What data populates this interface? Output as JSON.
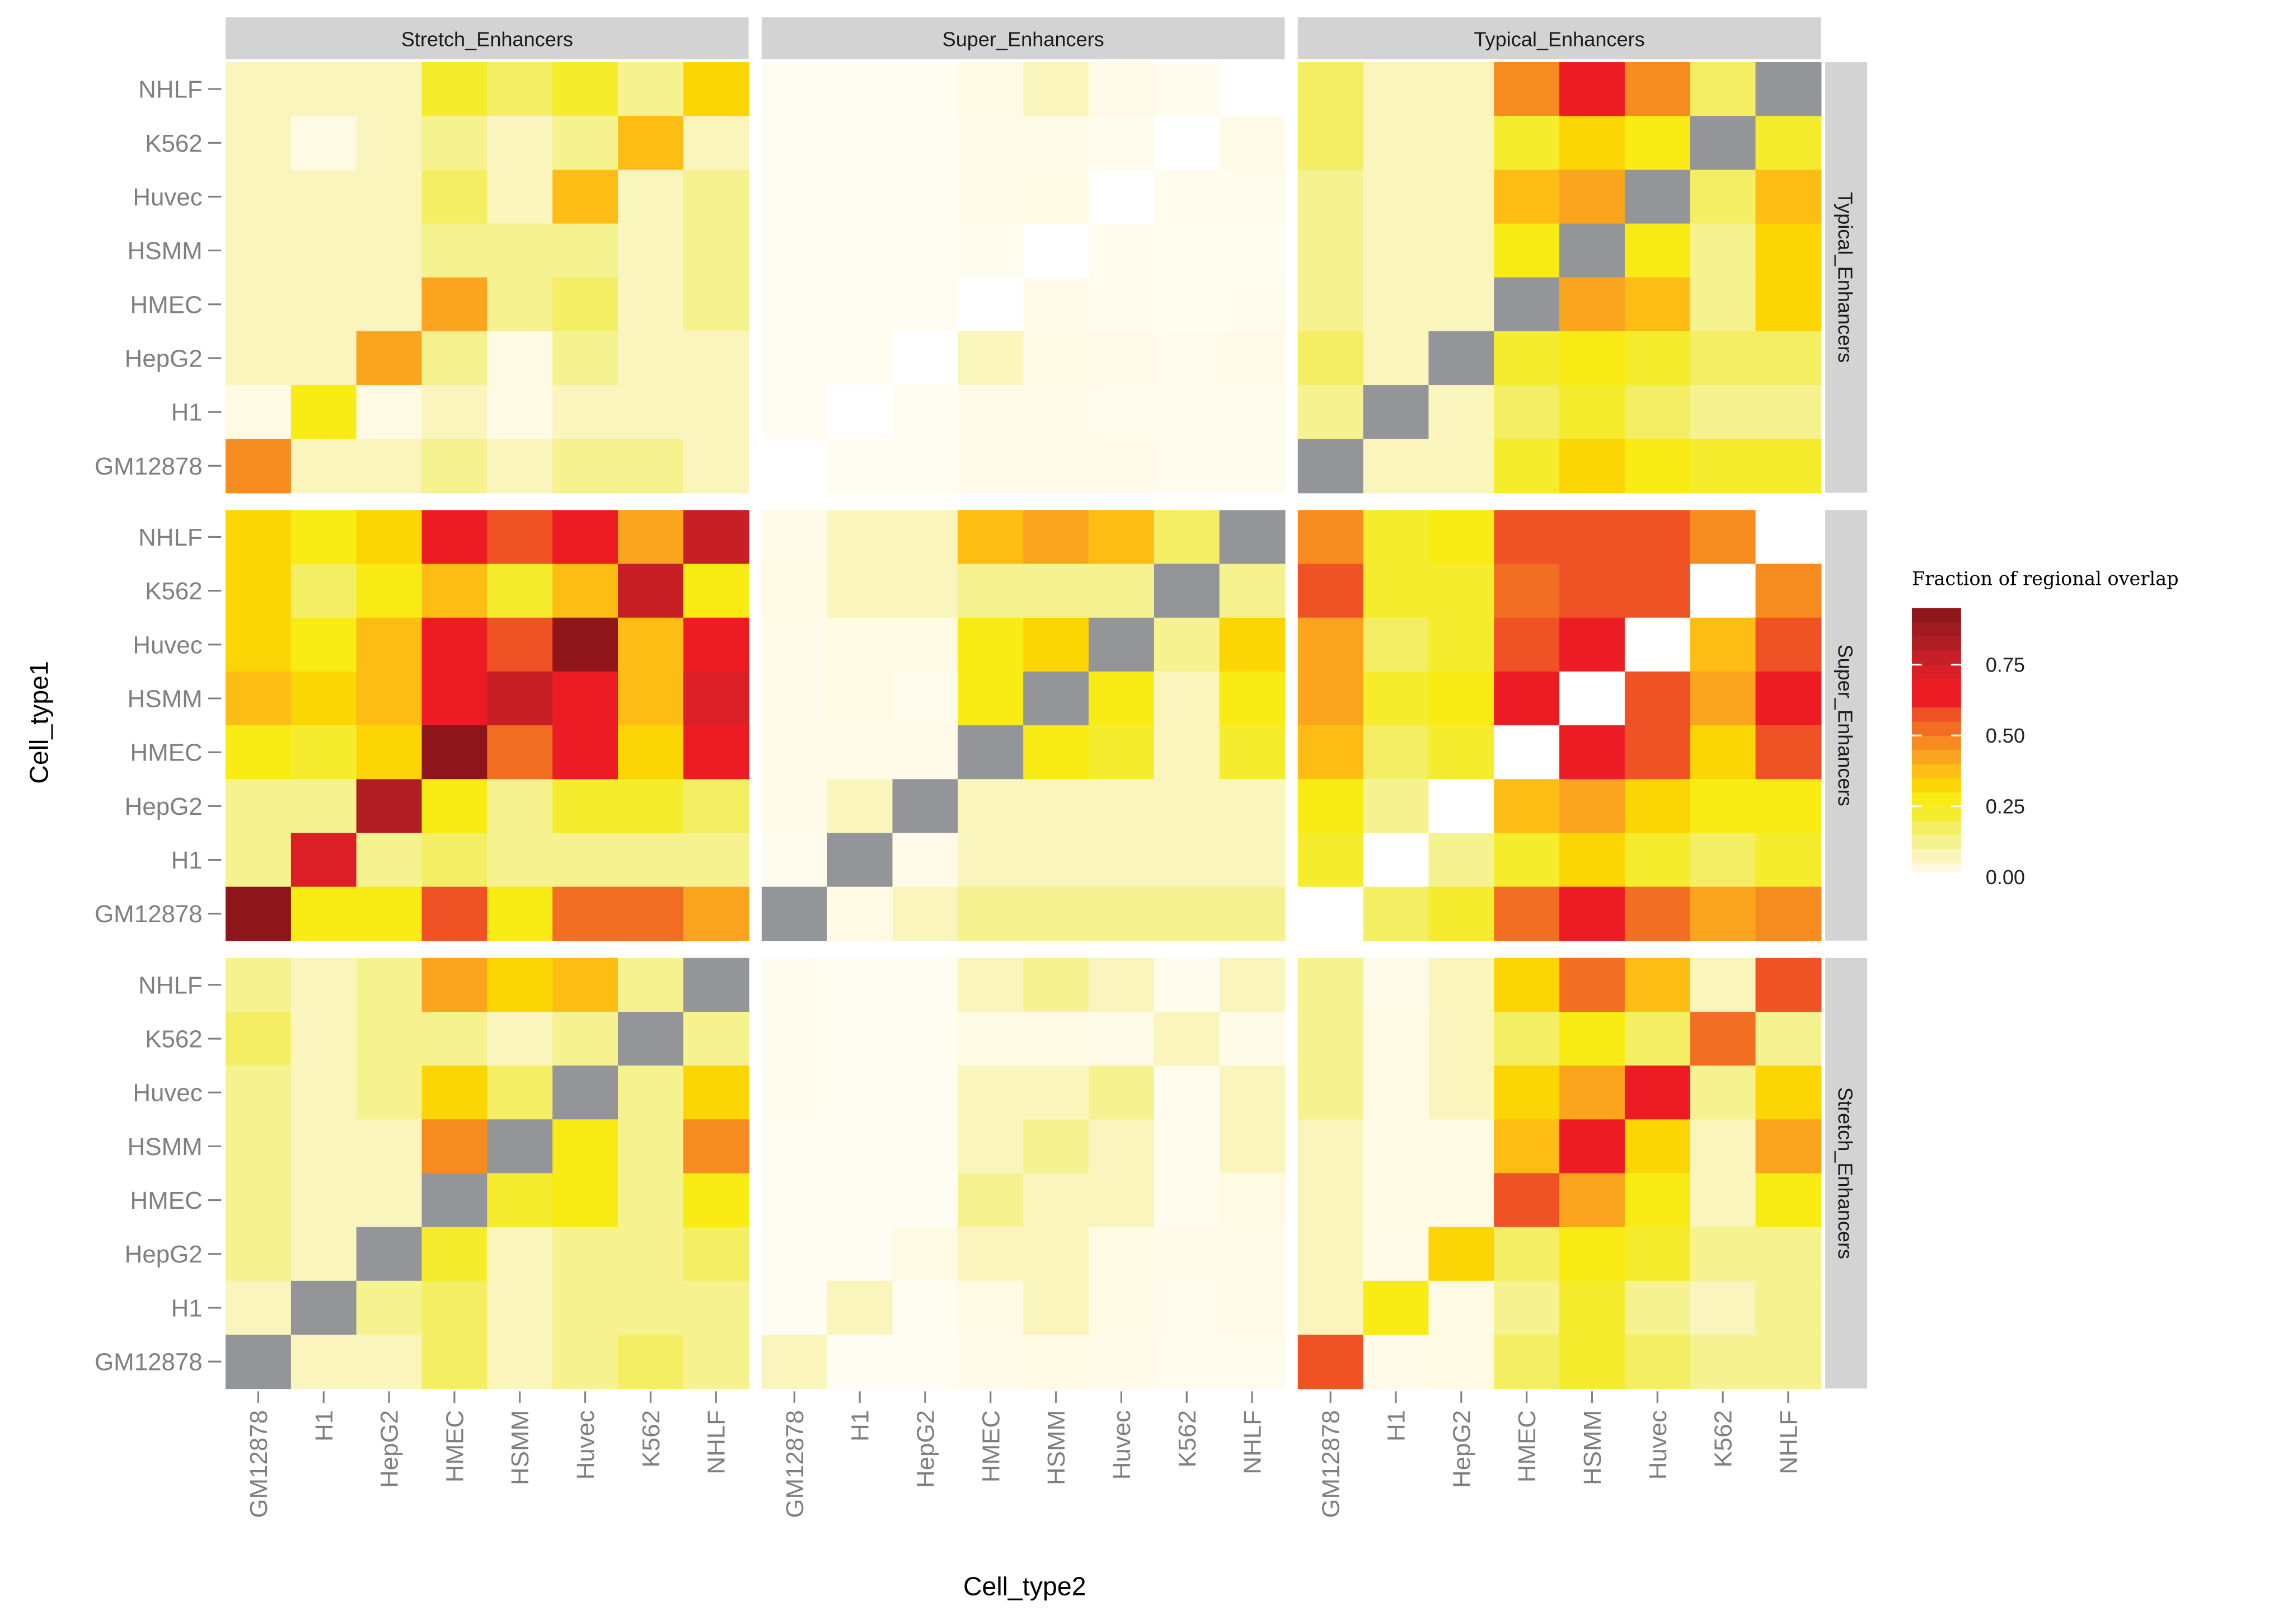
{
  "chart_data": {
    "type": "heatmap",
    "title": "",
    "xlabel": "Cell_type2",
    "ylabel": "Cell_type1",
    "x_labels": [
      "GM12878",
      "H1",
      "HepG2",
      "HMEC",
      "HSMM",
      "Huvec",
      "K562",
      "NHLF"
    ],
    "y_labels_top_to_bottom": [
      "NHLF",
      "K562",
      "Huvec",
      "HSMM",
      "HMEC",
      "HepG2",
      "H1",
      "GM12878"
    ],
    "facet_cols": [
      "Stretch_Enhancers",
      "Super_Enhancers",
      "Typical_Enhancers"
    ],
    "facet_rows": [
      "Typical_Enhancers",
      "Super_Enhancers",
      "Stretch_Enhancers"
    ],
    "legend": {
      "title": "Fraction of regional overlap",
      "placement": "right",
      "ticks": [
        {
          "value": 0.0,
          "label": "0.00"
        },
        {
          "value": 0.25,
          "label": "0.25"
        },
        {
          "value": 0.5,
          "label": "0.50"
        },
        {
          "value": 0.75,
          "label": "0.75"
        }
      ],
      "range": [
        0,
        0.95
      ],
      "step": 0.05,
      "palette": [
        "#FFF9DF",
        "#FAF5BD",
        "#F7F290",
        "#F4EE64",
        "#F4EC2C",
        "#F9EB14",
        "#FCD505",
        "#FDBD14",
        "#FBA51F",
        "#F68B1F",
        "#F26E22",
        "#EF5224",
        "#ED1C24",
        "#ED1C24",
        "#DA1F26",
        "#C62026",
        "#B01E23",
        "#A11C21",
        "#8E1519"
      ],
      "na_color": "#949598"
    },
    "panels": [
      {
        "row": "Typical_Enhancers",
        "col": "Stretch_Enhancers",
        "values": [
          [
            0.08,
            0.05,
            0.08,
            0.23,
            0.16,
            0.23,
            0.1,
            0.33
          ],
          [
            0.08,
            0.04,
            0.08,
            0.1,
            0.05,
            0.1,
            0.38,
            0.09
          ],
          [
            0.08,
            0.05,
            0.07,
            0.17,
            0.09,
            0.38,
            0.09,
            0.15
          ],
          [
            0.07,
            0.05,
            0.06,
            0.14,
            0.15,
            0.12,
            0.08,
            0.13
          ],
          [
            0.08,
            0.05,
            0.07,
            0.4,
            0.1,
            0.16,
            0.08,
            0.14
          ],
          [
            0.07,
            0.05,
            0.43,
            0.1,
            0.04,
            0.1,
            0.08,
            0.08
          ],
          [
            0.04,
            0.28,
            0.04,
            0.07,
            0.04,
            0.07,
            0.07,
            0.05
          ],
          [
            0.48,
            0.05,
            0.07,
            0.12,
            0.05,
            0.12,
            0.13,
            0.09
          ]
        ]
      },
      {
        "row": "Typical_Enhancers",
        "col": "Super_Enhancers",
        "values": [
          [
            0.01,
            0.01,
            0.01,
            0.04,
            0.05,
            0.03,
            0.02,
            0
          ],
          [
            0.01,
            0.01,
            0.01,
            0.03,
            0.03,
            0.02,
            0,
            0.03
          ],
          [
            0.01,
            0.01,
            0.01,
            0.03,
            0.04,
            0,
            0.02,
            0.02
          ],
          [
            0.01,
            0.01,
            0.01,
            0.02,
            0,
            0.02,
            0.015,
            0.015
          ],
          [
            0.01,
            0.01,
            0.01,
            0,
            0.03,
            0.02,
            0.015,
            0.02
          ],
          [
            0.01,
            0.01,
            0,
            0.05,
            0.04,
            0.03,
            0.02,
            0.03
          ],
          [
            0.01,
            0,
            0.01,
            0.03,
            0.03,
            0.02,
            0.02,
            0.02
          ],
          [
            0,
            0.01,
            0.01,
            0.03,
            0.03,
            0.03,
            0.02,
            0.02
          ]
        ]
      },
      {
        "row": "Typical_Enhancers",
        "col": "Typical_Enhancers",
        "values": [
          [
            0.16,
            0.08,
            0.08,
            0.48,
            0.61,
            0.48,
            0.18,
            null
          ],
          [
            0.18,
            0.08,
            0.09,
            0.23,
            0.32,
            0.28,
            null,
            0.24
          ],
          [
            0.15,
            0.08,
            0.09,
            0.38,
            0.43,
            null,
            0.16,
            0.38
          ],
          [
            0.1,
            0.07,
            0.07,
            0.29,
            null,
            0.28,
            0.1,
            0.31
          ],
          [
            0.14,
            0.07,
            0.09,
            null,
            0.43,
            0.37,
            0.15,
            0.35
          ],
          [
            0.17,
            0.07,
            null,
            0.24,
            0.26,
            0.23,
            0.19,
            0.19
          ],
          [
            0.13,
            null,
            0.05,
            0.18,
            0.22,
            0.17,
            0.13,
            0.14
          ],
          [
            null,
            0.07,
            0.09,
            0.24,
            0.31,
            0.28,
            0.22,
            0.23
          ]
        ]
      },
      {
        "row": "Super_Enhancers",
        "col": "Stretch_Enhancers",
        "values": [
          [
            0.33,
            0.28,
            0.33,
            0.68,
            0.56,
            0.68,
            0.4,
            0.76
          ],
          [
            0.31,
            0.17,
            0.26,
            0.37,
            0.23,
            0.38,
            0.75,
            0.28
          ],
          [
            0.33,
            0.26,
            0.37,
            0.68,
            0.56,
            0.95,
            0.38,
            0.7
          ],
          [
            0.37,
            0.32,
            0.36,
            0.7,
            0.77,
            0.68,
            0.38,
            0.71
          ],
          [
            0.3,
            0.22,
            0.33,
            0.9,
            0.52,
            0.63,
            0.33,
            0.63
          ],
          [
            0.15,
            0.15,
            0.8,
            0.28,
            0.12,
            0.23,
            0.24,
            0.19
          ],
          [
            0.1,
            0.73,
            0.1,
            0.16,
            0.1,
            0.14,
            0.15,
            0.11
          ],
          [
            0.95,
            0.27,
            0.3,
            0.55,
            0.3,
            0.5,
            0.5,
            0.44
          ]
        ]
      },
      {
        "row": "Super_Enhancers",
        "col": "Super_Enhancers",
        "values": [
          [
            0.03,
            0.05,
            0.05,
            0.37,
            0.43,
            0.39,
            0.16,
            null
          ],
          [
            0.04,
            0.05,
            0.06,
            0.12,
            0.13,
            0.12,
            null,
            0.15
          ],
          [
            0.03,
            0.04,
            0.04,
            0.3,
            0.32,
            null,
            0.1,
            0.33
          ],
          [
            0.03,
            0.04,
            0.02,
            0.26,
            null,
            0.28,
            0.08,
            0.3
          ],
          [
            0.03,
            0.03,
            0.03,
            null,
            0.26,
            0.24,
            0.09,
            0.24
          ],
          [
            0.03,
            0.05,
            null,
            0.08,
            0.07,
            0.07,
            0.09,
            0.08
          ],
          [
            0.02,
            null,
            0.03,
            0.06,
            0.06,
            0.06,
            0.07,
            0.07
          ],
          [
            null,
            0.04,
            0.06,
            0.1,
            0.13,
            0.1,
            0.12,
            0.1
          ]
        ]
      },
      {
        "row": "Super_Enhancers",
        "col": "Typical_Enhancers",
        "values": [
          [
            0.47,
            0.24,
            0.27,
            0.56,
            0.56,
            0.56,
            0.47,
            0
          ],
          [
            0.56,
            0.24,
            0.23,
            0.52,
            0.58,
            0.55,
            0,
            0.45
          ],
          [
            0.4,
            0.18,
            0.2,
            0.6,
            0.64,
            0,
            0.39,
            0.57
          ],
          [
            0.41,
            0.24,
            0.25,
            0.65,
            0,
            0.6,
            0.43,
            0.65
          ],
          [
            0.38,
            0.16,
            0.24,
            0,
            0.65,
            0.56,
            0.35,
            0.6
          ],
          [
            0.26,
            0.1,
            0,
            0.39,
            0.43,
            0.32,
            0.26,
            0.29
          ],
          [
            0.22,
            0,
            0.1,
            0.24,
            0.33,
            0.23,
            0.18,
            0.22
          ],
          [
            0,
            0.19,
            0.22,
            0.53,
            0.61,
            0.5,
            0.4,
            0.47
          ]
        ]
      },
      {
        "row": "Stretch_Enhancers",
        "col": "Stretch_Enhancers",
        "values": [
          [
            0.12,
            0.09,
            0.12,
            0.42,
            0.33,
            0.37,
            0.13,
            null
          ],
          [
            0.16,
            0.08,
            0.1,
            0.15,
            0.08,
            0.14,
            null,
            0.13
          ],
          [
            0.11,
            0.08,
            0.1,
            0.33,
            0.16,
            null,
            0.12,
            0.32
          ],
          [
            0.1,
            0.08,
            0.09,
            0.45,
            null,
            0.3,
            0.11,
            0.48
          ],
          [
            0.1,
            0.07,
            0.09,
            null,
            0.22,
            0.27,
            0.12,
            0.3
          ],
          [
            0.1,
            0.08,
            null,
            0.2,
            0.08,
            0.15,
            0.14,
            0.16
          ],
          [
            0.09,
            null,
            0.1,
            0.16,
            0.08,
            0.14,
            0.1,
            0.14
          ],
          [
            null,
            0.07,
            0.08,
            0.16,
            0.07,
            0.15,
            0.17,
            0.14
          ]
        ]
      },
      {
        "row": "Stretch_Enhancers",
        "col": "Super_Enhancers",
        "values": [
          [
            0.02,
            0.01,
            0.01,
            0.08,
            0.12,
            0.07,
            0.02,
            0.08
          ],
          [
            0.02,
            0.01,
            0.01,
            0.04,
            0.04,
            0.03,
            0.06,
            0.03
          ],
          [
            0.02,
            0.01,
            0.01,
            0.07,
            0.08,
            0.13,
            0.02,
            0.06
          ],
          [
            0.01,
            0.01,
            0.01,
            0.07,
            0.15,
            0.06,
            0.02,
            0.06
          ],
          [
            0.01,
            0.01,
            0.01,
            0.14,
            0.07,
            0.05,
            0.02,
            0.04
          ],
          [
            0.01,
            0.01,
            0.04,
            0.05,
            0.05,
            0.04,
            0.03,
            0.03
          ],
          [
            0.01,
            0.07,
            0.01,
            0.04,
            0.05,
            0.04,
            0.02,
            0.03
          ],
          [
            0.05,
            0.01,
            0.01,
            0.03,
            0.04,
            0.03,
            0.02,
            0.02
          ]
        ]
      },
      {
        "row": "Stretch_Enhancers",
        "col": "Typical_Enhancers",
        "values": [
          [
            0.1,
            0.03,
            0.05,
            0.35,
            0.52,
            0.36,
            0.09,
            0.56
          ],
          [
            0.14,
            0.04,
            0.05,
            0.17,
            0.28,
            0.19,
            0.52,
            0.13
          ],
          [
            0.12,
            0.04,
            0.06,
            0.33,
            0.41,
            0.68,
            0.1,
            0.32
          ],
          [
            0.08,
            0.04,
            0.04,
            0.36,
            0.68,
            0.32,
            0.06,
            0.4
          ],
          [
            0.09,
            0.04,
            0.04,
            0.6,
            0.41,
            0.3,
            0.07,
            0.28
          ],
          [
            0.09,
            0.03,
            0.32,
            0.18,
            0.27,
            0.2,
            0.12,
            0.13
          ],
          [
            0.08,
            0.28,
            0.04,
            0.15,
            0.23,
            0.14,
            0.09,
            0.12
          ],
          [
            0.6,
            0.03,
            0.04,
            0.18,
            0.24,
            0.18,
            0.13,
            0.14
          ]
        ]
      }
    ]
  }
}
